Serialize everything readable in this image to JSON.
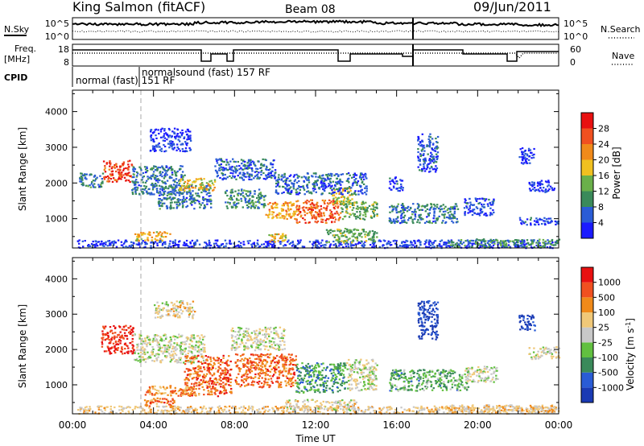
{
  "header": {
    "station": "King Salmon (fitACF)",
    "beam": "Beam 08",
    "date": "09/Jun/2011"
  },
  "noise_panel": {
    "left_label": "N.Sky",
    "right_label": "N.Search",
    "left_ticks": [
      "10^5",
      "10^0"
    ],
    "right_ticks": [
      "10^5",
      "10^0"
    ]
  },
  "freq_panel": {
    "left_label_1": "Freq.",
    "left_label_2": "[MHz]",
    "right_label": "Nave",
    "left_ticks": [
      "18",
      "8"
    ],
    "right_ticks": [
      "60",
      "0"
    ]
  },
  "cpid": {
    "label": "CPID",
    "mode_1": "normal (fast) 151 RF",
    "mode_2": "normalsound (fast) 157 RF"
  },
  "chart_data": [
    {
      "type": "heatmap",
      "name": "power",
      "ylabel": "Slant Range [km]",
      "yticks": [
        1000,
        2000,
        3000,
        4000
      ],
      "ylim": [
        180,
        4600
      ],
      "xlim": [
        0,
        24
      ],
      "colorbar": {
        "label": "Power [dB]",
        "tick_labels": [
          "4",
          "8",
          "12",
          "16",
          "20",
          "24",
          "28"
        ],
        "colors": [
          "#1a1aff",
          "#2a5cd6",
          "#3a8a5a",
          "#6ab04a",
          "#f0c020",
          "#f08a1a",
          "#f05020",
          "#e81010"
        ]
      },
      "regions": [
        {
          "t0": 0.2,
          "t1": 24.0,
          "r0": 200,
          "r1": 420,
          "level": 0.1
        },
        {
          "t0": 0.3,
          "t1": 1.5,
          "r0": 1900,
          "r1": 2300,
          "level": 0.25
        },
        {
          "t0": 1.5,
          "t1": 2.9,
          "r0": 2050,
          "r1": 2650,
          "level": 0.85
        },
        {
          "t0": 2.9,
          "t1": 5.5,
          "r0": 1700,
          "r1": 2500,
          "level": 0.25
        },
        {
          "t0": 3.8,
          "t1": 5.8,
          "r0": 2900,
          "r1": 3550,
          "level": 0.1
        },
        {
          "t0": 4.2,
          "t1": 6.8,
          "r0": 1300,
          "r1": 1950,
          "level": 0.25
        },
        {
          "t0": 5.2,
          "t1": 7.0,
          "r0": 1800,
          "r1": 2150,
          "level": 0.55
        },
        {
          "t0": 7.0,
          "t1": 10.0,
          "r0": 2100,
          "r1": 2700,
          "level": 0.2
        },
        {
          "t0": 7.5,
          "t1": 9.5,
          "r0": 1300,
          "r1": 1850,
          "level": 0.3
        },
        {
          "t0": 9.5,
          "t1": 11.0,
          "r0": 1000,
          "r1": 1500,
          "level": 0.65
        },
        {
          "t0": 11.0,
          "t1": 13.2,
          "r0": 900,
          "r1": 1550,
          "level": 0.8
        },
        {
          "t0": 12.8,
          "t1": 13.8,
          "r0": 1400,
          "r1": 1900,
          "level": 0.55
        },
        {
          "t0": 13.2,
          "t1": 15.0,
          "r0": 1000,
          "r1": 1500,
          "level": 0.4
        },
        {
          "t0": 10.0,
          "t1": 14.5,
          "r0": 1700,
          "r1": 2300,
          "level": 0.2
        },
        {
          "t0": 3.0,
          "t1": 4.8,
          "r0": 400,
          "r1": 650,
          "level": 0.6
        },
        {
          "t0": 9.5,
          "t1": 10.5,
          "r0": 350,
          "r1": 600,
          "level": 0.6
        },
        {
          "t0": 12.5,
          "t1": 15.0,
          "r0": 350,
          "r1": 750,
          "level": 0.4
        },
        {
          "t0": 15.6,
          "t1": 19.0,
          "r0": 900,
          "r1": 1450,
          "level": 0.25
        },
        {
          "t0": 15.6,
          "t1": 16.3,
          "r0": 1800,
          "r1": 2200,
          "level": 0.15
        },
        {
          "t0": 17.0,
          "t1": 18.0,
          "r0": 2300,
          "r1": 3400,
          "level": 0.15
        },
        {
          "t0": 19.3,
          "t1": 20.8,
          "r0": 1100,
          "r1": 1600,
          "level": 0.15
        },
        {
          "t0": 22.0,
          "t1": 24.0,
          "r0": 850,
          "r1": 1050,
          "level": 0.15
        },
        {
          "t0": 22.5,
          "t1": 23.8,
          "r0": 1750,
          "r1": 2100,
          "level": 0.1
        },
        {
          "t0": 22.0,
          "t1": 22.8,
          "r0": 2550,
          "r1": 3000,
          "level": 0.1
        },
        {
          "t0": 18.5,
          "t1": 24.0,
          "r0": 220,
          "r1": 450,
          "level": 0.35
        }
      ]
    },
    {
      "type": "heatmap",
      "name": "velocity",
      "ylabel": "Slant Range [km]",
      "xlabel": "Time UT",
      "xticks": [
        "00:00",
        "04:00",
        "08:00",
        "12:00",
        "16:00",
        "20:00",
        "00:00"
      ],
      "yticks": [
        1000,
        2000,
        3000,
        4000
      ],
      "ylim": [
        180,
        4600
      ],
      "xlim": [
        0,
        24
      ],
      "colorbar": {
        "label": "Velocity [m s^-1]",
        "tick_labels": [
          "1000",
          "500",
          "100",
          "25",
          "-25",
          "-100",
          "-500",
          "-1000"
        ],
        "colors": [
          "#1a3ab4",
          "#2a5cd6",
          "#3a8a5a",
          "#62c040",
          "#c8c8c8",
          "#f0c878",
          "#f08a1a",
          "#f05020",
          "#e81010"
        ]
      },
      "regions": [
        {
          "t0": 0.2,
          "t1": 24.0,
          "r0": 200,
          "r1": 420,
          "level": 0.6
        },
        {
          "t0": 1.4,
          "t1": 3.0,
          "r0": 1900,
          "r1": 2700,
          "level": 0.92
        },
        {
          "t0": 3.0,
          "t1": 6.5,
          "r0": 1650,
          "r1": 2450,
          "level": 0.5
        },
        {
          "t0": 4.0,
          "t1": 6.0,
          "r0": 2900,
          "r1": 3400,
          "level": 0.55
        },
        {
          "t0": 5.5,
          "t1": 7.8,
          "r0": 700,
          "r1": 1850,
          "level": 0.8
        },
        {
          "t0": 7.8,
          "t1": 10.5,
          "r0": 2000,
          "r1": 2650,
          "level": 0.5
        },
        {
          "t0": 8.0,
          "t1": 11.0,
          "r0": 950,
          "r1": 1900,
          "level": 0.8
        },
        {
          "t0": 11.0,
          "t1": 13.5,
          "r0": 800,
          "r1": 1650,
          "level": 0.3
        },
        {
          "t0": 13.5,
          "t1": 15.0,
          "r0": 850,
          "r1": 1750,
          "level": 0.5
        },
        {
          "t0": 3.5,
          "t1": 5.0,
          "r0": 400,
          "r1": 650,
          "level": 0.78
        },
        {
          "t0": 3.5,
          "t1": 6.0,
          "r0": 700,
          "r1": 1000,
          "level": 0.75
        },
        {
          "t0": 10.5,
          "t1": 14.0,
          "r0": 300,
          "r1": 600,
          "level": 0.55
        },
        {
          "t0": 15.6,
          "t1": 19.5,
          "r0": 850,
          "r1": 1450,
          "level": 0.35
        },
        {
          "t0": 17.0,
          "t1": 18.0,
          "r0": 2300,
          "r1": 3400,
          "level": 0.05
        },
        {
          "t0": 19.3,
          "t1": 21.0,
          "r0": 1100,
          "r1": 1550,
          "level": 0.5
        },
        {
          "t0": 22.5,
          "t1": 24.0,
          "r0": 1750,
          "r1": 2100,
          "level": 0.5
        },
        {
          "t0": 22.0,
          "t1": 22.8,
          "r0": 2550,
          "r1": 3000,
          "level": 0.05
        },
        {
          "t0": 18.5,
          "t1": 24.0,
          "r0": 220,
          "r1": 450,
          "level": 0.62
        }
      ]
    }
  ]
}
